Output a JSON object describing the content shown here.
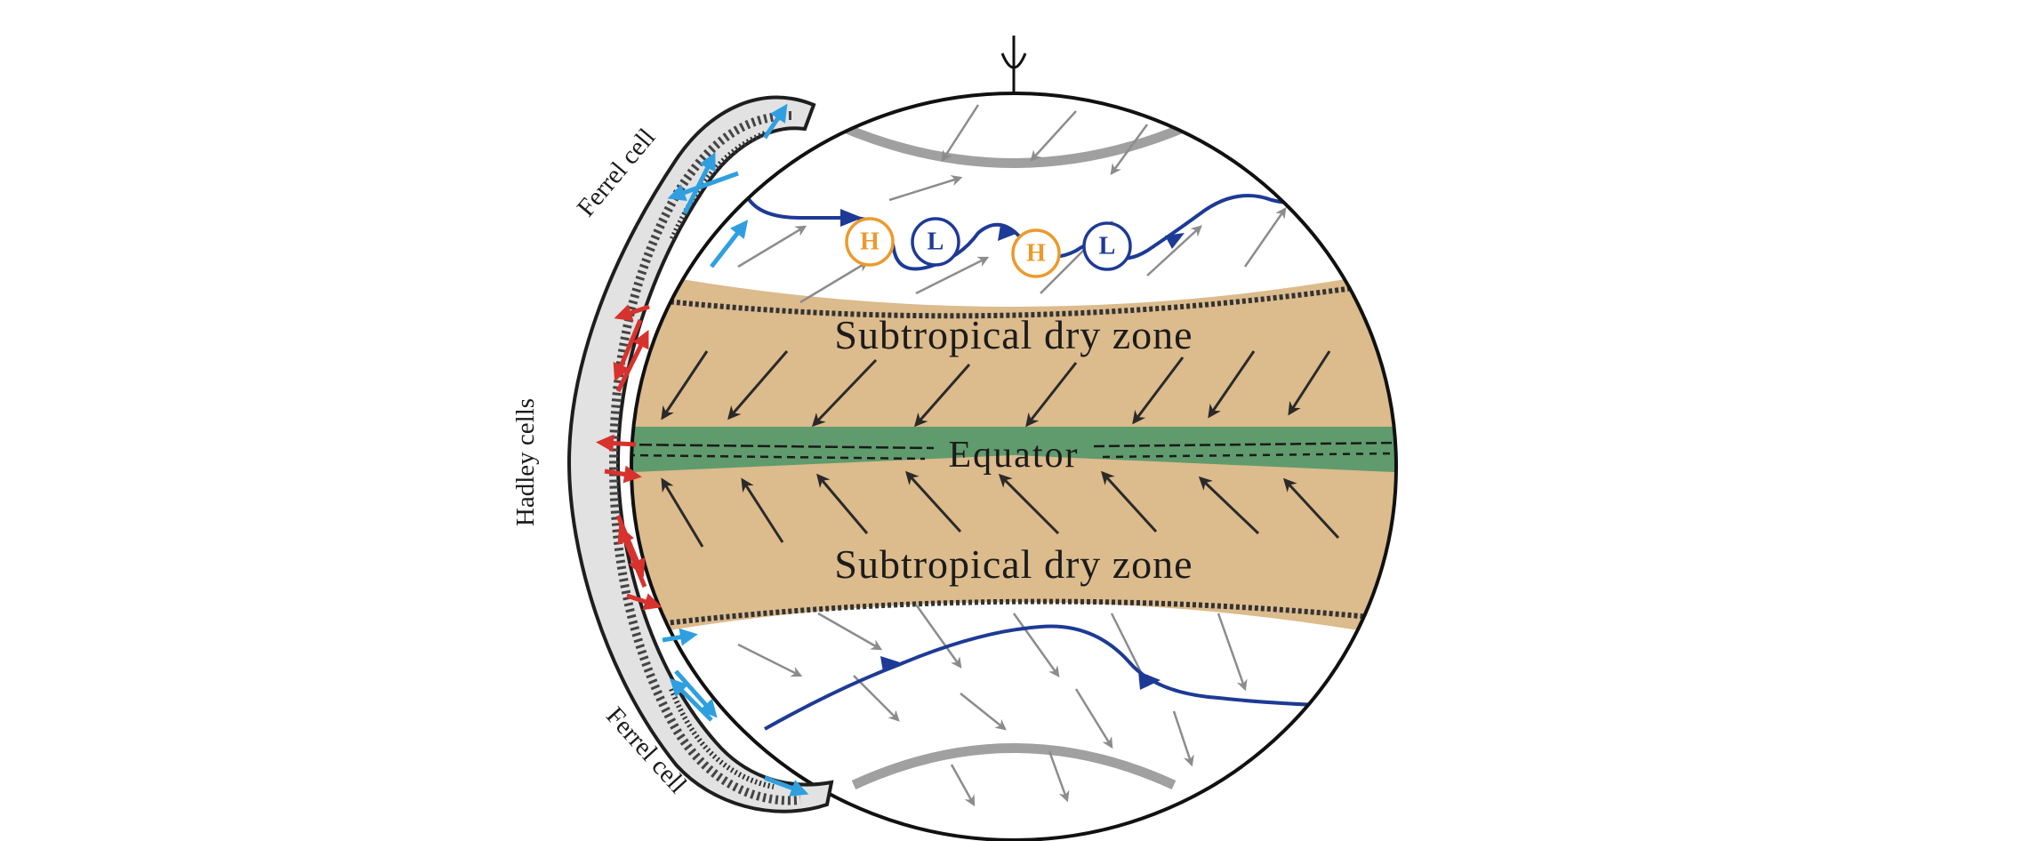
{
  "labels": {
    "zone_north": "Subtropical dry zone",
    "zone_south": "Subtropical dry zone",
    "equator": "Equator",
    "hadley": "Hadley cells",
    "ferrel_north": "Ferrel cell",
    "ferrel_south": "Ferrel cell"
  },
  "pressure_systems": [
    {
      "label": "H",
      "kind": "high"
    },
    {
      "label": "L",
      "kind": "low"
    },
    {
      "label": "H",
      "kind": "high"
    },
    {
      "label": "L",
      "kind": "low"
    }
  ],
  "colors": {
    "dry_zone": "#dcbb8c",
    "equator_band": "#5f9b6d",
    "jet_stream": "#1d3a96",
    "high_pressure": "#ec9a2c",
    "low_pressure": "#1d3a96",
    "hadley_arrows": "#d7322d",
    "ferrel_arrows": "#2f9fe0",
    "wind_arrows": "#2a2a2a",
    "polar_arrows": "#8c8c8c"
  }
}
